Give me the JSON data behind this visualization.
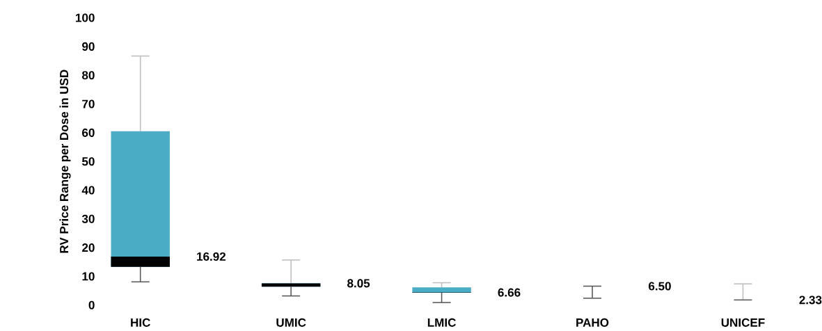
{
  "chart_data": {
    "type": "box",
    "ylabel": "RV Price Range per Dose in USD",
    "categories": [
      "HIC",
      "UMIC",
      "LMIC",
      "PAHO",
      "UNICEF"
    ],
    "series": [
      {
        "color": "#000000",
        "colors": [
          "#4bacc6",
          "#4bacc6",
          "#4bacc6",
          "#595959",
          "#595959"
        ],
        "boxes": [
          {
            "low": 8.1,
            "q1": 13.3,
            "median": 16.9,
            "q3": 60.5,
            "high": 86.7
          },
          {
            "low": 3.2,
            "q1": 6.4,
            "median": 7.6,
            "q3": 7.6,
            "high": 15.7
          },
          {
            "low": 0.9,
            "q1": 4.3,
            "median": 4.4,
            "q3": 6.2,
            "high": 7.8
          },
          {
            "low": 2.4,
            "q1": 6.6,
            "median": 6.6,
            "q3": 6.6,
            "high": 6.6
          },
          {
            "low": 1.8,
            "q1": 1.8,
            "median": 1.8,
            "q3": 1.8,
            "high": 7.4
          }
        ],
        "value_labels": [
          "16.92",
          "8.05",
          "6.66",
          "6.50",
          "2.33"
        ]
      }
    ],
    "ylim": [
      0,
      100
    ],
    "yticks": [
      0,
      10,
      20,
      30,
      40,
      50,
      60,
      70,
      80,
      90,
      100
    ],
    "grid": false
  }
}
